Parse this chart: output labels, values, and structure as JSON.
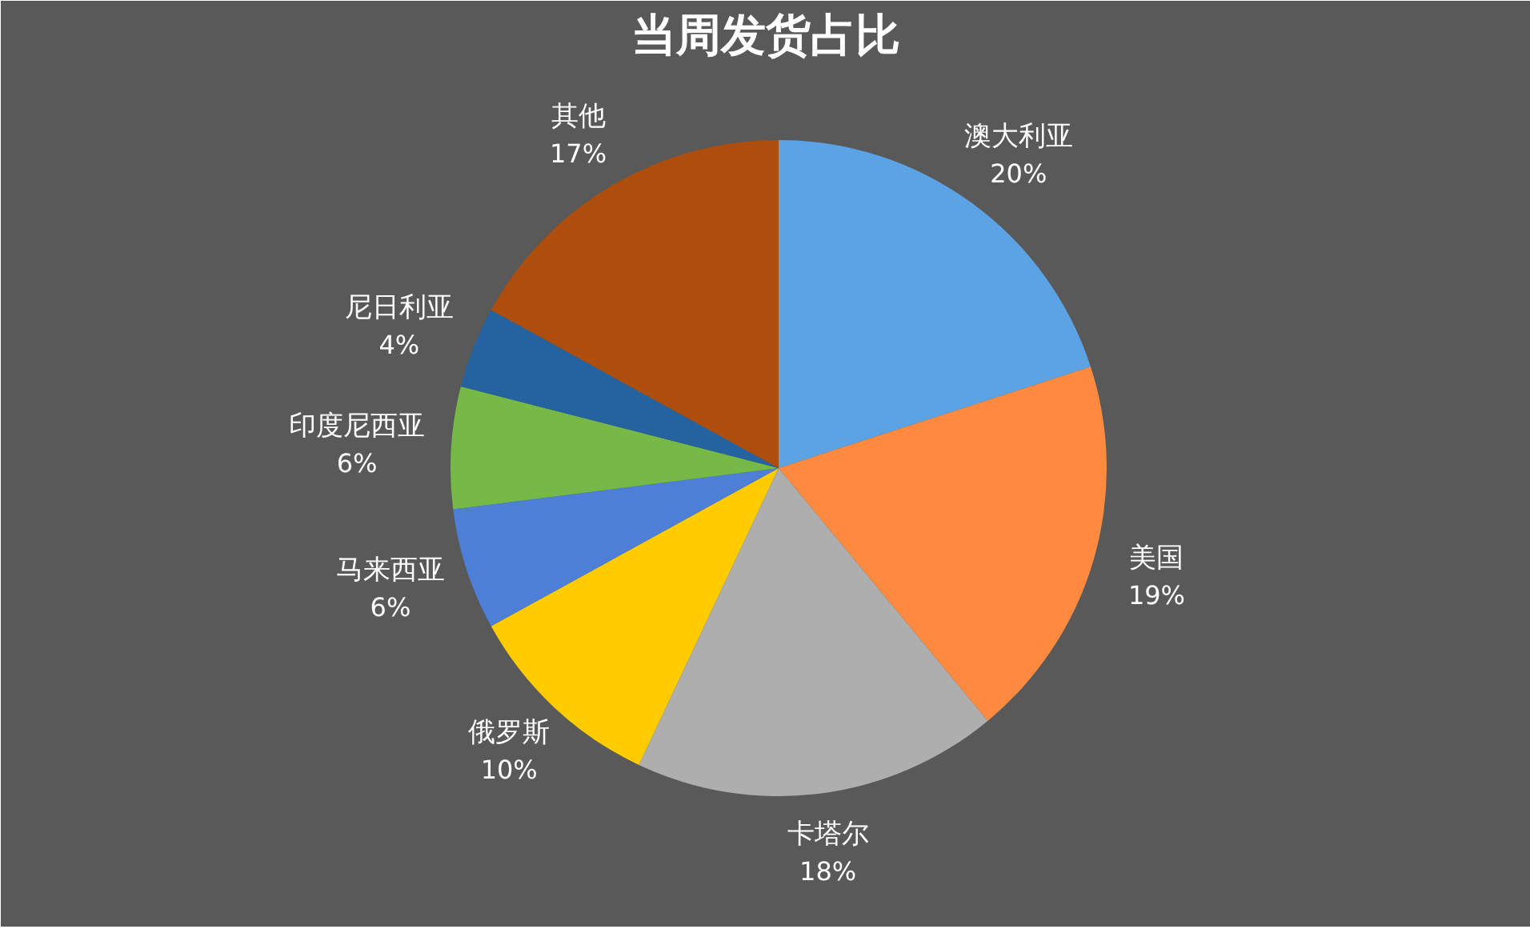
{
  "chart_data": {
    "type": "pie",
    "title": "当周发货占比",
    "categories": [
      "澳大利亚",
      "美国",
      "卡塔尔",
      "俄罗斯",
      "马来西亚",
      "印度尼西亚",
      "尼日利亚",
      "其他"
    ],
    "values": [
      20,
      19,
      18,
      10,
      6,
      6,
      4,
      17
    ],
    "value_labels": [
      "20%",
      "19%",
      "18%",
      "10%",
      "6%",
      "6%",
      "4%",
      "17%"
    ],
    "colors": [
      "#5ca3e6",
      "#fd8a3e",
      "#aeaeae",
      "#ffcc00",
      "#4d7fd6",
      "#76b947",
      "#2463a0",
      "#ad4e0f"
    ]
  }
}
